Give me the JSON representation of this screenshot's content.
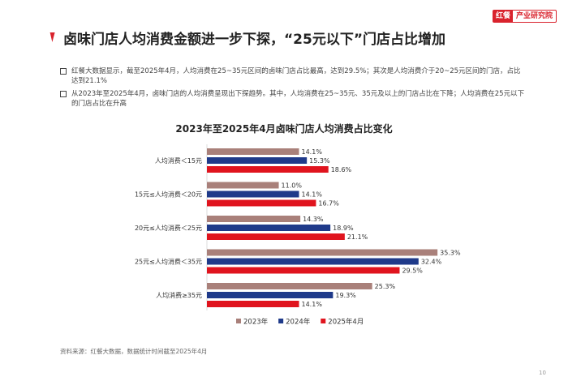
{
  "logo": {
    "brand": "红餐",
    "text": "产业研究院"
  },
  "title": "卤味门店人均消费金额进一步下探，“25元以下”门店占比增加",
  "bullets": [
    "红餐大数据显示，截至2025年4月，人均消费在25~35元区间的卤味门店占比最高，达到29.5%；其次是人均消费介于20~25元区间的门店，占比达到21.1%",
    "从2023年至2025年4月，卤味门店的人均消费呈现出下探趋势。其中，人均消费在25~35元、35元及以上的门店占比在下降；人均消费在25元以下的门店占比在升高"
  ],
  "source": "资料来源：红餐大数据，数据统计时间截至2025年4月",
  "page_number": "10",
  "chart_data": {
    "type": "bar",
    "orientation": "horizontal",
    "title": "2023年至2025年4月卤味门店人均消费占比变化",
    "categories": [
      "人均消费＜15元",
      "15元≤人均消费＜20元",
      "20元≤人均消费＜25元",
      "25元≤人均消费＜35元",
      "人均消费≥35元"
    ],
    "series": [
      {
        "name": "2023年",
        "color": "#a9807a",
        "values": [
          14.1,
          11.0,
          14.3,
          35.3,
          25.3
        ]
      },
      {
        "name": "2024年",
        "color": "#1f3a8a",
        "values": [
          15.3,
          14.1,
          18.9,
          32.4,
          19.3
        ]
      },
      {
        "name": "2025年4月",
        "color": "#e0141e",
        "values": [
          18.6,
          16.7,
          21.1,
          29.5,
          14.1
        ]
      }
    ],
    "unit": "%",
    "legend": "bottom",
    "grid": false
  }
}
